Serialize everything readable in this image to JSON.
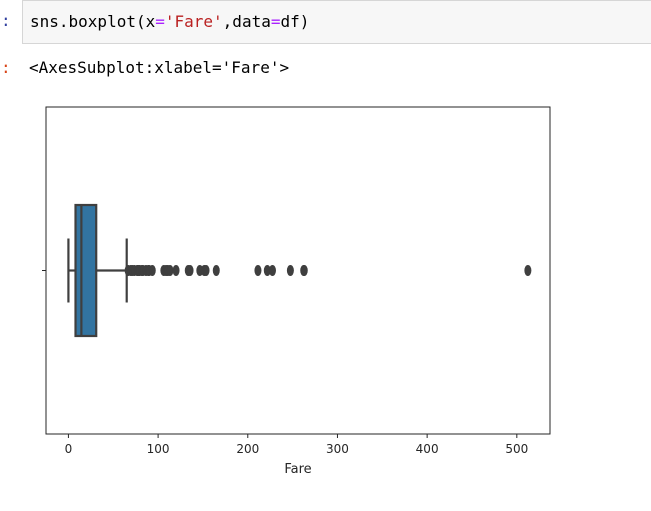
{
  "cell": {
    "prompt": ":",
    "code": {
      "fn": "sns.boxplot(x",
      "eq1": "=",
      "xval": "'Fare'",
      "sep": ",data",
      "eq2": "=",
      "df": "df)"
    }
  },
  "output": {
    "prompt": ":",
    "text": "<AxesSubplot:xlabel='Fare'>"
  },
  "colors": {
    "box_fill": "#3274a1",
    "box_stroke": "#3f3f3f",
    "axes_bg": "#ffffff",
    "axes_border": "#262626",
    "prompt_in": "#303f9f",
    "prompt_out": "#d84315"
  },
  "chart_data": {
    "type": "box",
    "orientation": "horizontal",
    "title": "",
    "xlabel": "Fare",
    "ylabel": "",
    "xlim": [
      -25,
      537
    ],
    "xticks": [
      0,
      100,
      200,
      300,
      400,
      500
    ],
    "grid": false,
    "legend": "none",
    "series": [
      {
        "whisker_low": 0.0,
        "q1": 7.91,
        "median": 14.45,
        "q3": 31.0,
        "whisker_high": 65.0,
        "outliers": [
          66.6,
          69.55,
          71.28,
          73.5,
          76.73,
          77.29,
          78.85,
          79.2,
          81.86,
          83.16,
          86.5,
          89.1,
          90.0,
          93.5,
          106.43,
          108.9,
          110.88,
          113.28,
          120.0,
          133.65,
          135.63,
          146.52,
          151.55,
          153.46,
          164.87,
          211.34,
          221.78,
          227.53,
          247.52,
          262.38,
          263.0,
          512.33
        ]
      }
    ]
  }
}
